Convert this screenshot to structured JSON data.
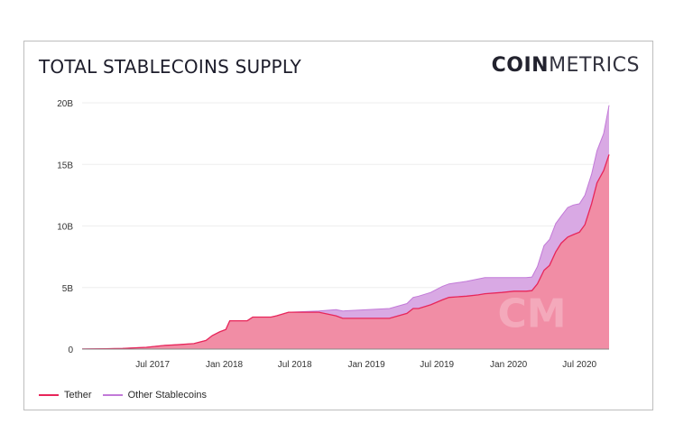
{
  "title": "TOTAL STABLECOINS SUPPLY",
  "brand": {
    "bold": "COIN",
    "light": "METRICS"
  },
  "watermark": "CM",
  "colors": {
    "tether_fill": "#f18da5",
    "tether_line": "#e8265a",
    "other_fill": "#d9a9e4",
    "other_line": "#c27ad8",
    "grid": "#eeeeee"
  },
  "chart_data": {
    "type": "area",
    "title": "TOTAL STABLECOINS SUPPLY",
    "ylim": [
      0,
      20
    ],
    "yticks": [
      0,
      5,
      10,
      15,
      20
    ],
    "ytick_labels": [
      "0",
      "5B",
      "10B",
      "15B",
      "20B"
    ],
    "xlim": [
      "2017-01-01",
      "2020-09-15"
    ],
    "xticks": [
      "2017-07-01",
      "2018-01-01",
      "2018-07-01",
      "2019-01-01",
      "2019-07-01",
      "2020-01-01",
      "2020-07-01"
    ],
    "xtick_labels": [
      "Jul 2017",
      "Jan 2018",
      "Jul 2018",
      "Jan 2019",
      "Jul 2019",
      "Jan 2020",
      "Jul 2020"
    ],
    "legend_position": "bottom-left",
    "series": [
      {
        "name": "Tether",
        "x": [
          "2017-01-01",
          "2017-03-01",
          "2017-04-15",
          "2017-05-15",
          "2017-06-15",
          "2017-08-01",
          "2017-09-01",
          "2017-10-15",
          "2017-11-15",
          "2017-12-01",
          "2017-12-20",
          "2018-01-05",
          "2018-01-15",
          "2018-03-01",
          "2018-03-15",
          "2018-05-01",
          "2018-05-15",
          "2018-06-15",
          "2018-09-01",
          "2018-10-15",
          "2018-11-01",
          "2019-03-01",
          "2019-04-15",
          "2019-05-01",
          "2019-05-15",
          "2019-06-15",
          "2019-07-15",
          "2019-08-01",
          "2019-09-15",
          "2019-10-15",
          "2019-11-01",
          "2019-12-15",
          "2020-01-15",
          "2020-02-15",
          "2020-03-01",
          "2020-03-15",
          "2020-04-01",
          "2020-04-15",
          "2020-05-01",
          "2020-05-15",
          "2020-06-01",
          "2020-06-15",
          "2020-07-01",
          "2020-07-15",
          "2020-08-01",
          "2020-08-15",
          "2020-09-01",
          "2020-09-15"
        ],
        "values": [
          0.01,
          0.03,
          0.05,
          0.1,
          0.15,
          0.3,
          0.35,
          0.45,
          0.7,
          1.1,
          1.4,
          1.6,
          2.3,
          2.3,
          2.6,
          2.6,
          2.7,
          3.0,
          3.0,
          2.7,
          2.5,
          2.5,
          2.9,
          3.3,
          3.3,
          3.6,
          4.0,
          4.2,
          4.3,
          4.4,
          4.5,
          4.6,
          4.7,
          4.7,
          4.75,
          5.3,
          6.4,
          6.8,
          7.9,
          8.6,
          9.1,
          9.3,
          9.5,
          10.1,
          11.8,
          13.5,
          14.5,
          15.8
        ]
      },
      {
        "name": "Other Stablecoins",
        "x": [
          "2017-01-01",
          "2017-03-01",
          "2017-04-15",
          "2017-05-15",
          "2017-06-15",
          "2017-08-01",
          "2017-09-01",
          "2017-10-15",
          "2017-11-15",
          "2017-12-01",
          "2017-12-20",
          "2018-01-05",
          "2018-01-15",
          "2018-03-01",
          "2018-03-15",
          "2018-05-01",
          "2018-05-15",
          "2018-06-15",
          "2018-09-01",
          "2018-10-15",
          "2018-11-01",
          "2019-03-01",
          "2019-04-15",
          "2019-05-01",
          "2019-05-15",
          "2019-06-15",
          "2019-07-15",
          "2019-08-01",
          "2019-09-15",
          "2019-10-15",
          "2019-11-01",
          "2019-12-15",
          "2020-01-15",
          "2020-02-15",
          "2020-03-01",
          "2020-03-15",
          "2020-04-01",
          "2020-04-15",
          "2020-05-01",
          "2020-05-15",
          "2020-06-01",
          "2020-06-15",
          "2020-07-01",
          "2020-07-15",
          "2020-08-01",
          "2020-08-15",
          "2020-09-01",
          "2020-09-15"
        ],
        "values": [
          0,
          0,
          0,
          0,
          0,
          0,
          0,
          0,
          0,
          0,
          0,
          0,
          0,
          0,
          0,
          0,
          0,
          0,
          0.1,
          0.5,
          0.6,
          0.8,
          0.8,
          0.9,
          1.0,
          1.0,
          1.1,
          1.1,
          1.2,
          1.3,
          1.3,
          1.2,
          1.1,
          1.1,
          1.1,
          1.4,
          2.0,
          2.1,
          2.3,
          2.2,
          2.4,
          2.4,
          2.3,
          2.4,
          2.4,
          2.6,
          3.0,
          4.0
        ]
      }
    ]
  },
  "legend": {
    "tether_label": "Tether",
    "other_label": "Other Stablecoins"
  }
}
